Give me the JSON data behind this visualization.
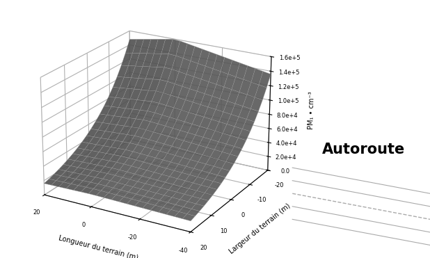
{
  "xlabel": "Longueur du terrain (m)",
  "ylabel": "Largeur du terrain (m)",
  "zlabel": "PM₁ • cm⁻³",
  "x_ticks": [
    20,
    0,
    -20,
    -40
  ],
  "y_ticks": [
    20,
    10,
    0,
    -10,
    -20
  ],
  "z_ticks": [
    0.0,
    20000,
    40000,
    60000,
    80000,
    100000,
    120000,
    140000,
    160000
  ],
  "z_tick_labels": [
    "0.0",
    "2.0e+4",
    "4.0e+4",
    "6.0e+4",
    "8.0e+4",
    "1.0e+5",
    "1.2e+5",
    "1.4e+5",
    "1.6e+5"
  ],
  "surface_color": "#c8c8c8",
  "surface_alpha": 0.9,
  "autoroute_label": "Autoroute",
  "background_color": "#ffffff",
  "road_line_color": "#aaaaaa",
  "elev": 22,
  "azim": -60
}
